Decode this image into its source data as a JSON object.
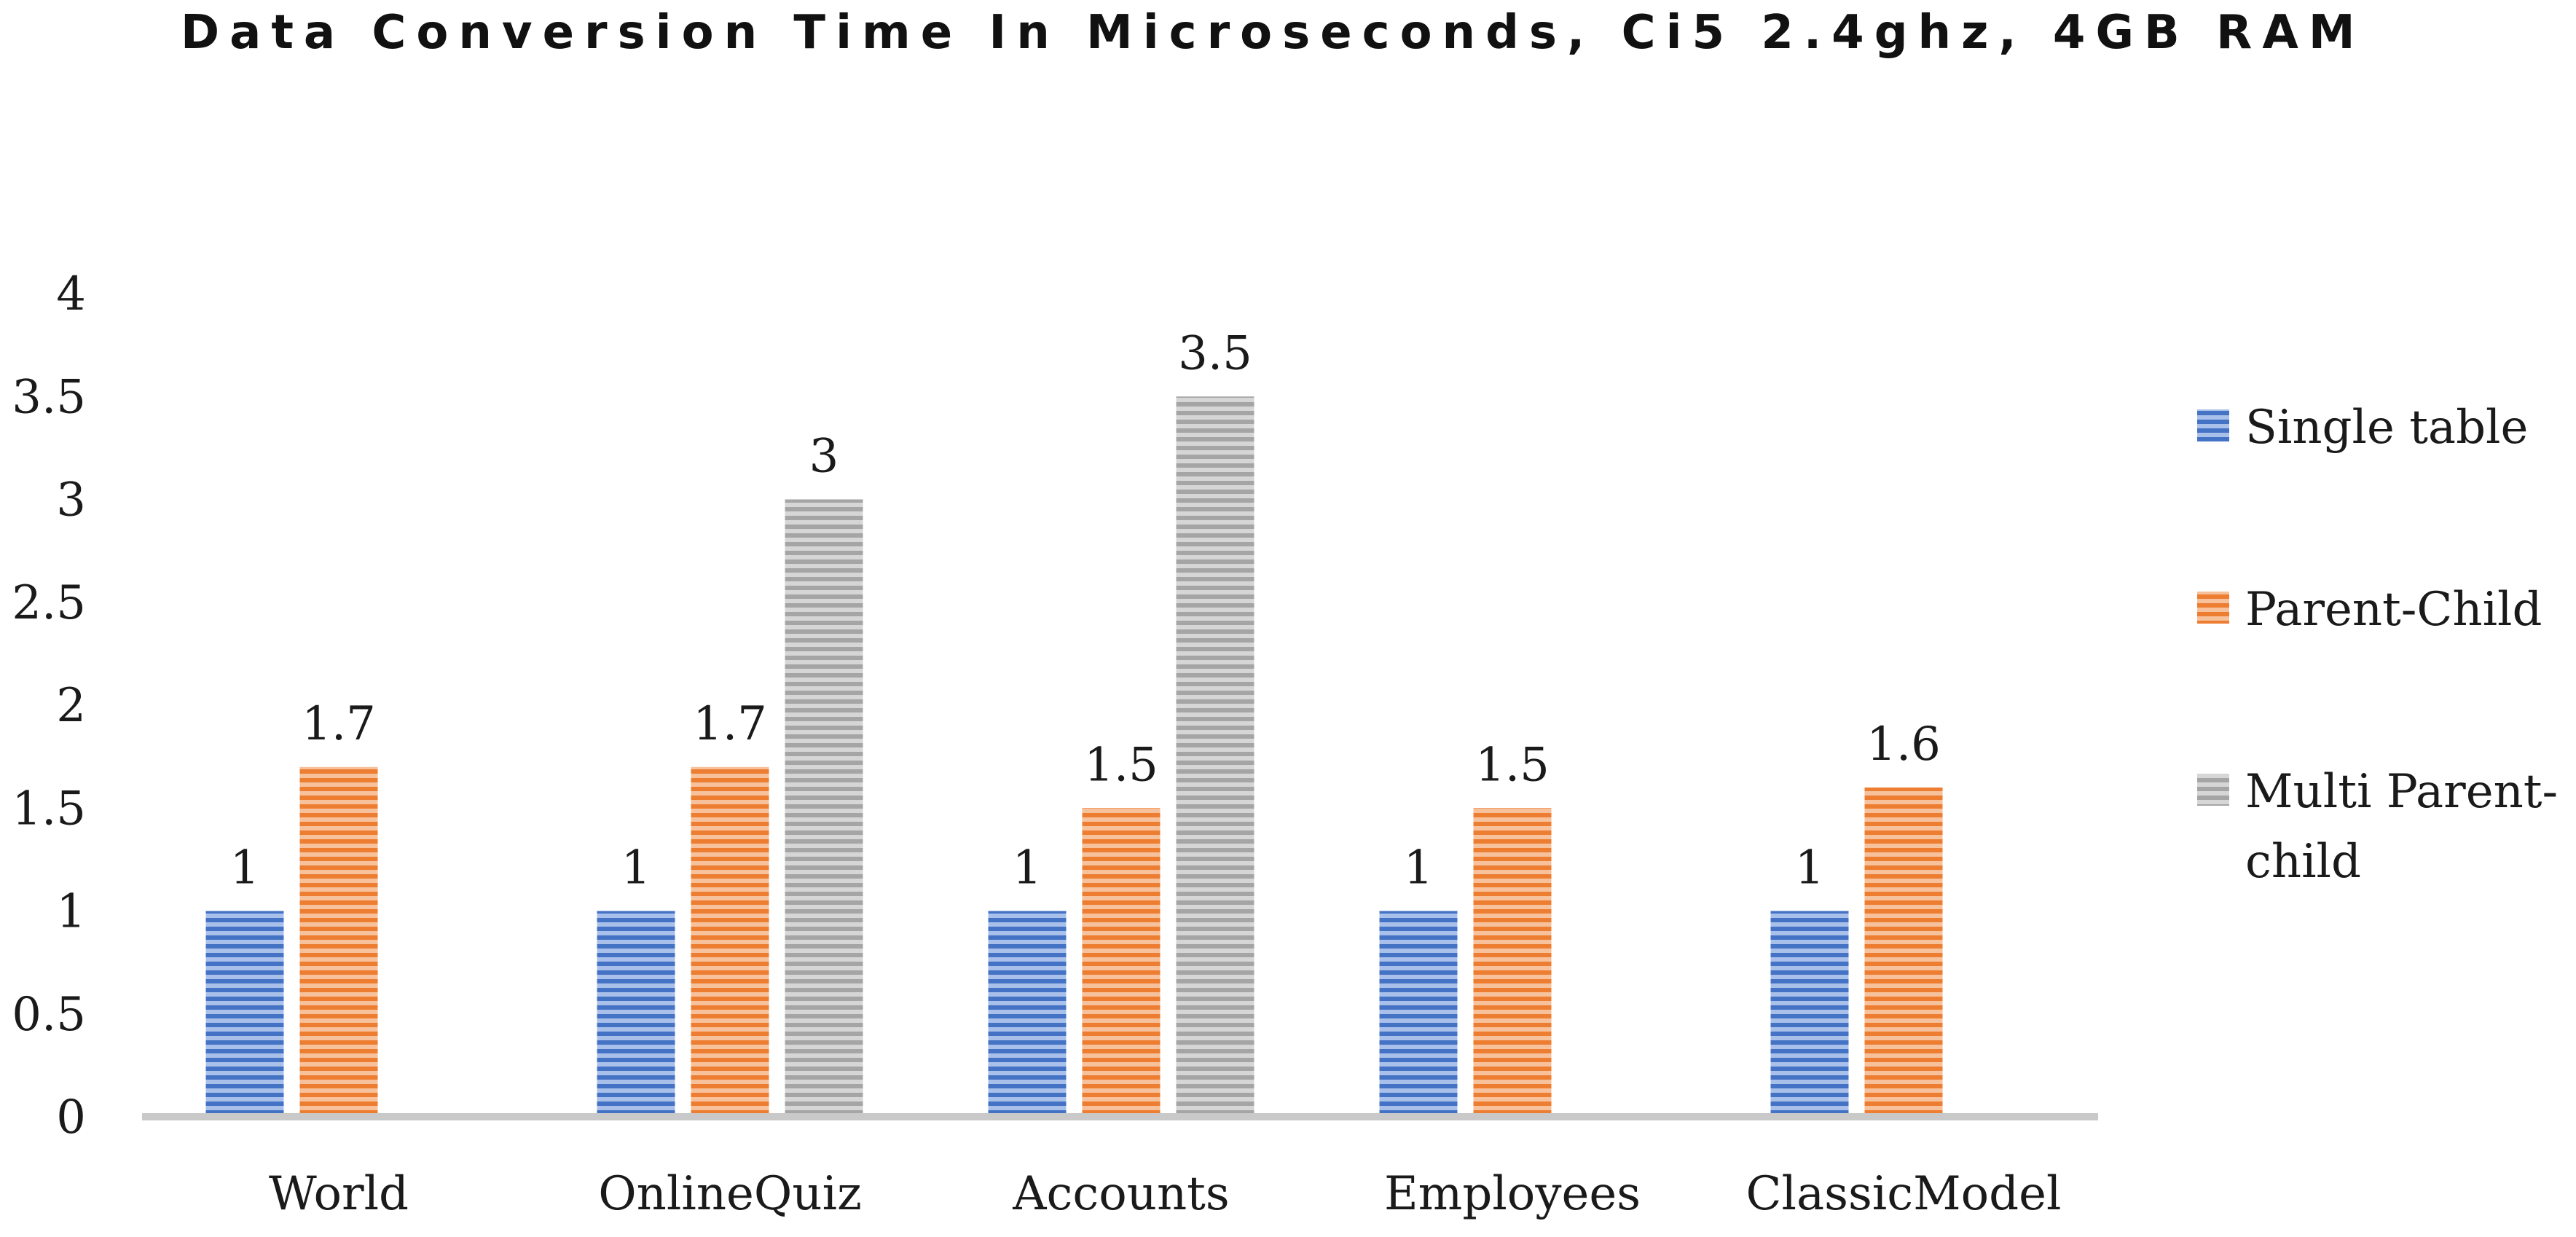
{
  "chart_data": {
    "type": "bar",
    "title": "Data Conversion Time In Microseconds, Ci5 2.4ghz, 4GB RAM",
    "xlabel": "",
    "ylabel": "",
    "categories": [
      "World",
      "OnlineQuiz",
      "Accounts",
      "Employees",
      "ClassicModel"
    ],
    "series": [
      {
        "name": "Single table",
        "values": [
          1,
          1,
          1,
          1,
          1
        ],
        "color": "#4472c4"
      },
      {
        "name": "Parent-Child",
        "values": [
          1.7,
          1.7,
          1.5,
          1.5,
          1.6
        ],
        "color": "#ed7d31"
      },
      {
        "name": "Multi Parent-child",
        "values": [
          null,
          3,
          3.5,
          null,
          null
        ],
        "color": "#a5a5a5"
      }
    ],
    "ylim": [
      0,
      4
    ],
    "yticks": [
      "0",
      "0.5",
      "1",
      "1.5",
      "2",
      "2.5",
      "3",
      "3.5",
      "4"
    ],
    "grid": false,
    "legend_position": "right",
    "fill_style": "horizontal stripes"
  }
}
